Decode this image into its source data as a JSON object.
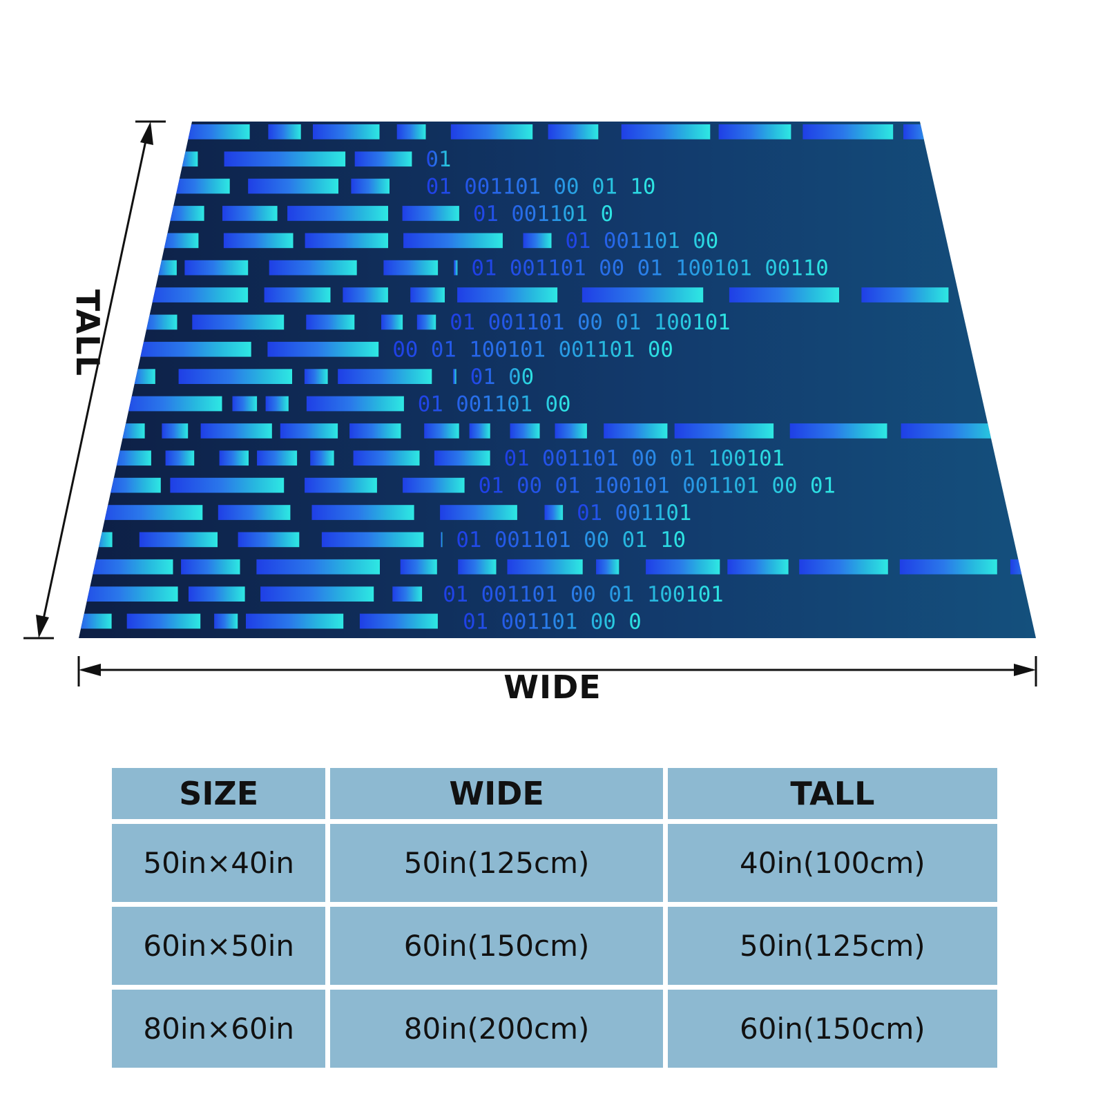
{
  "diagram": {
    "wide_label": "WIDE",
    "tall_label": "TALL",
    "binary_rows": [
      "",
      "01",
      "01   001101   00   01   10",
      "01   001101   0",
      "01   001101   00",
      "01   001101   00   01   100101   00110",
      "",
      "01   001101   00   01   100101",
      "00   01   100101   001101   00",
      "01   00",
      "01   001101   00",
      "",
      "01   001101   00   01   100101",
      "01   00   01   100101   001101   00   01",
      "01   001101",
      "01   001101   00   01   10",
      "",
      "01   001101   00   01   100101",
      "01   001101   00   0"
    ],
    "colors": {
      "blanket_left": "#1f4fe0",
      "blanket_right": "#24d6e0",
      "blanket_bg": "#102a54",
      "arrow": "#111111"
    }
  },
  "table": {
    "headers": [
      "SIZE",
      "WIDE",
      "TALL"
    ],
    "rows": [
      [
        "50in×40in",
        "50in(125cm)",
        "40in(100cm)"
      ],
      [
        "60in×50in",
        "60in(150cm)",
        "50in(125cm)"
      ],
      [
        "80in×60in",
        "80in(200cm)",
        "60in(150cm)"
      ]
    ],
    "cell_color": "#8db9d1"
  }
}
